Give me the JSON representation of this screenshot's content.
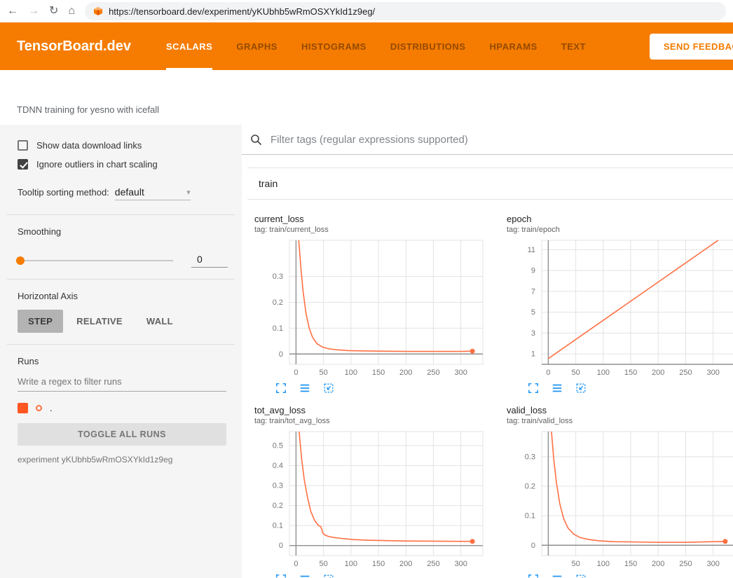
{
  "browser": {
    "url": "https://tensorboard.dev/experiment/yKUbhb5wRmOSXYkId1z9eg/",
    "icons": {
      "back": "←",
      "forward": "→",
      "reload": "↻",
      "home": "⌂"
    }
  },
  "header": {
    "brand": "TensorBoard.dev",
    "tabs": [
      {
        "label": "SCALARS",
        "active": true
      },
      {
        "label": "GRAPHS",
        "active": false
      },
      {
        "label": "HISTOGRAMS",
        "active": false
      },
      {
        "label": "DISTRIBUTIONS",
        "active": false
      },
      {
        "label": "HPARAMS",
        "active": false
      },
      {
        "label": "TEXT",
        "active": false
      }
    ],
    "feedback_label": "SEND FEEDBACK",
    "accent_color": "#f57c00"
  },
  "experiment": {
    "description": "TDNN training for yesno with icefall"
  },
  "sidebar": {
    "show_download_label": "Show data download links",
    "show_download_checked": false,
    "ignore_outliers_label": "Ignore outliers in chart scaling",
    "ignore_outliers_checked": true,
    "tooltip_label": "Tooltip sorting method:",
    "tooltip_value": "default",
    "smoothing_label": "Smoothing",
    "smoothing_value": "0",
    "axis_label": "Horizontal Axis",
    "axis_options": [
      {
        "label": "STEP",
        "active": true
      },
      {
        "label": "RELATIVE",
        "active": false
      },
      {
        "label": "WALL",
        "active": false
      }
    ],
    "runs_label": "Runs",
    "runs_filter_placeholder": "Write a regex to filter runs",
    "run_name": ".",
    "run_color": "#ff7043",
    "toggle_all_label": "TOGGLE ALL RUNS",
    "experiment_label": "experiment yKUbhb5wRmOSXYkId1z9eg"
  },
  "main": {
    "filter_placeholder": "Filter tags (regular expressions supported)",
    "section_label": "train",
    "chart_icon_color": "#2196f3"
  },
  "chart_data": [
    {
      "type": "line",
      "title": "current_loss",
      "tag": "tag: train/current_loss",
      "xlim": [
        -12,
        340
      ],
      "ylim": [
        -0.04,
        0.44
      ],
      "xticks": [
        0,
        50,
        100,
        150,
        200,
        250,
        300
      ],
      "yticks": [
        0,
        0.1,
        0.2,
        0.3
      ],
      "end_dot": true,
      "series": [
        {
          "name": ".",
          "color": "#ff7043",
          "x": [
            2,
            5,
            9,
            13,
            18,
            24,
            30,
            38,
            48,
            60,
            75,
            95,
            120,
            150,
            200,
            250,
            300,
            321
          ],
          "y": [
            0.52,
            0.44,
            0.33,
            0.24,
            0.16,
            0.1,
            0.065,
            0.04,
            0.027,
            0.02,
            0.016,
            0.013,
            0.012,
            0.011,
            0.01,
            0.01,
            0.01,
            0.011
          ]
        }
      ]
    },
    {
      "type": "line",
      "title": "epoch",
      "tag": "tag: train/epoch",
      "xlim": [
        -12,
        340
      ],
      "ylim": [
        0,
        11.9
      ],
      "xticks": [
        0,
        50,
        100,
        150,
        200,
        250,
        300
      ],
      "yticks": [
        1,
        3,
        5,
        7,
        9,
        11
      ],
      "end_dot": false,
      "series": [
        {
          "name": ".",
          "color": "#ff7043",
          "x": [
            0,
            320
          ],
          "y": [
            0.55,
            12.3
          ]
        }
      ]
    },
    {
      "type": "line",
      "title": "tot_avg_loss",
      "tag": "tag: train/tot_avg_loss",
      "xlim": [
        -12,
        340
      ],
      "ylim": [
        -0.05,
        0.57
      ],
      "xticks": [
        0,
        50,
        100,
        150,
        200,
        250,
        300
      ],
      "yticks": [
        0,
        0.1,
        0.2,
        0.3,
        0.4,
        0.5
      ],
      "end_dot": true,
      "series": [
        {
          "name": ".",
          "color": "#ff7043",
          "x": [
            3,
            6,
            10,
            15,
            21,
            27,
            34,
            41,
            45,
            49,
            53,
            60,
            70,
            85,
            105,
            130,
            160,
            200,
            250,
            300,
            321
          ],
          "y": [
            0.66,
            0.56,
            0.44,
            0.33,
            0.24,
            0.17,
            0.125,
            0.1,
            0.095,
            0.062,
            0.052,
            0.045,
            0.04,
            0.035,
            0.03,
            0.027,
            0.025,
            0.023,
            0.022,
            0.021,
            0.021
          ]
        }
      ]
    },
    {
      "type": "line",
      "title": "valid_loss",
      "tag": "tag: train/valid_loss",
      "xlim": [
        -12,
        340
      ],
      "ylim": [
        -0.035,
        0.385
      ],
      "xticks": [
        50,
        100,
        150,
        200,
        250,
        300
      ],
      "yticks": [
        0,
        0.1,
        0.2,
        0.3
      ],
      "end_dot": true,
      "series": [
        {
          "name": ".",
          "color": "#ff7043",
          "x": [
            3,
            6,
            10,
            15,
            21,
            28,
            36,
            46,
            58,
            72,
            92,
            120,
            160,
            200,
            250,
            300,
            322
          ],
          "y": [
            0.46,
            0.38,
            0.29,
            0.21,
            0.14,
            0.09,
            0.058,
            0.038,
            0.026,
            0.02,
            0.015,
            0.012,
            0.011,
            0.01,
            0.01,
            0.012,
            0.013
          ]
        }
      ]
    }
  ]
}
